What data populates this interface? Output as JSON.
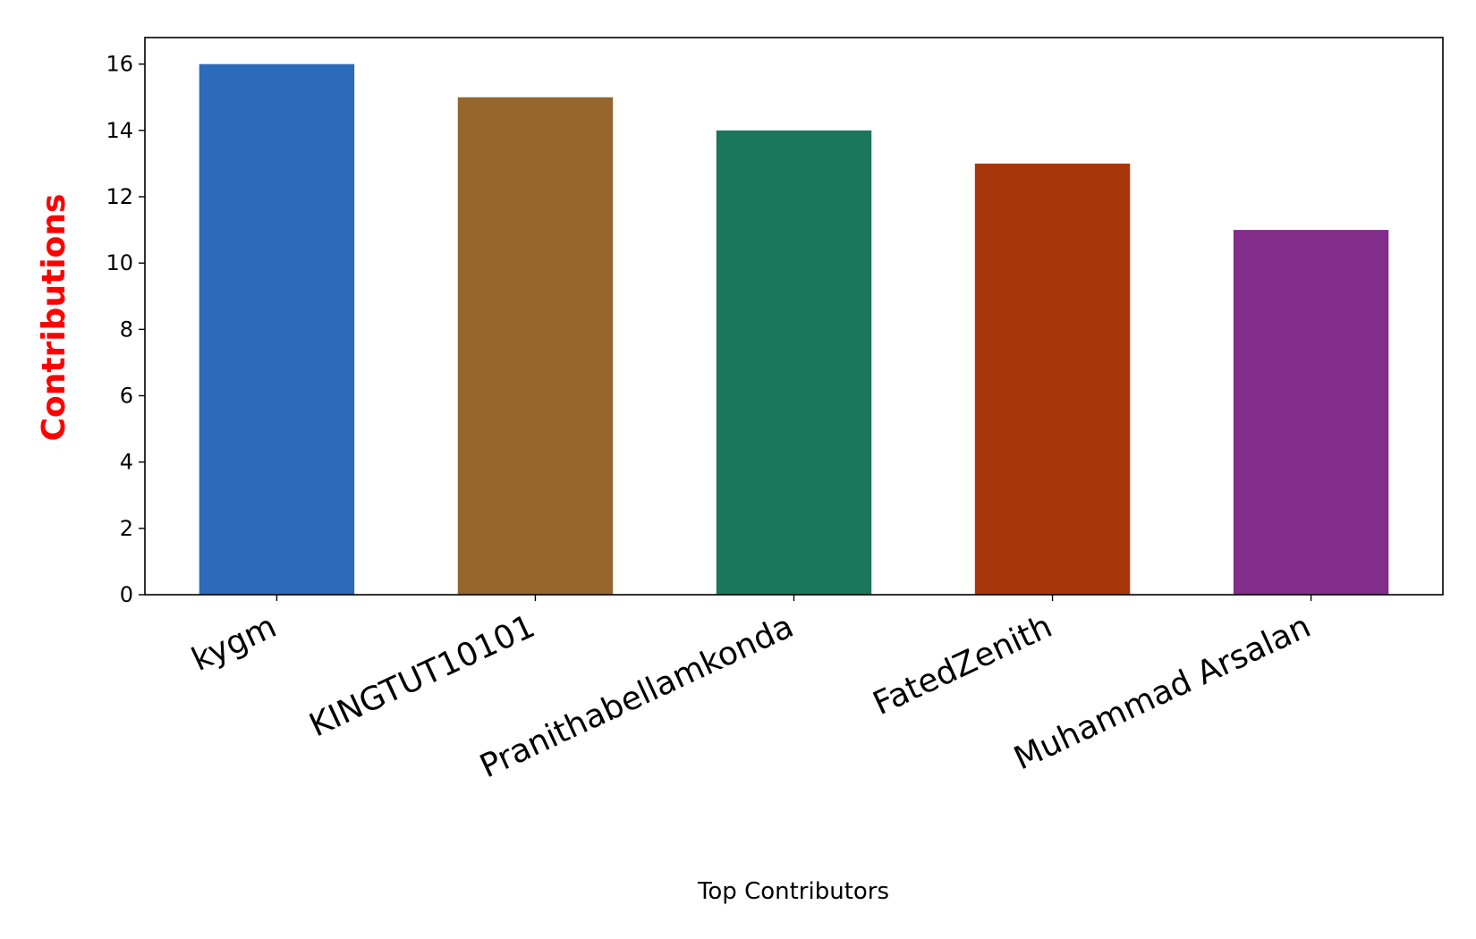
{
  "chart_data": {
    "type": "bar",
    "categories": [
      "kygm",
      "KINGTUT10101",
      "Pranithabellamkonda",
      "FatedZenith",
      "Muhammad Arsalan"
    ],
    "values": [
      16,
      15,
      14,
      13,
      11
    ],
    "colors": [
      "#2c6aba",
      "#96662d",
      "#1a7759",
      "#a8360b",
      "#832e8a"
    ],
    "title": "",
    "xlabel": "Top Contributors",
    "ylabel": "Contributions",
    "ylabel_color": "#ff0000",
    "ylim": [
      0,
      16.8
    ],
    "yticks": [
      "0",
      "2",
      "4",
      "6",
      "8",
      "10",
      "12",
      "14",
      "16"
    ],
    "xtick_rotation": -25,
    "grid": false,
    "legend": "none"
  }
}
